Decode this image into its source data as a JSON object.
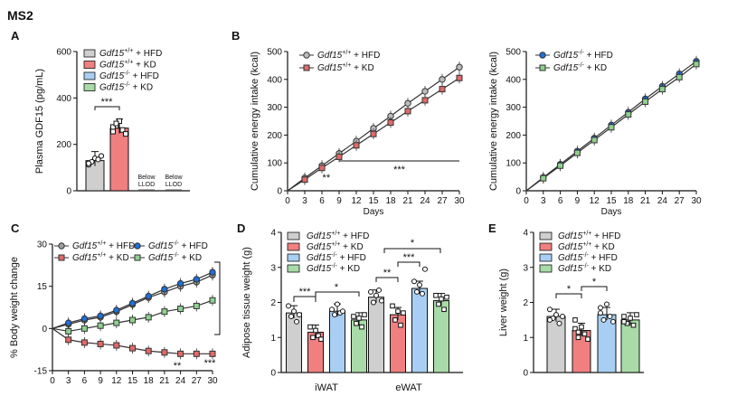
{
  "figure_label": "MS2",
  "chart_data": [
    {
      "panel": "A",
      "type": "bar",
      "ylabel": "Plasma GDF15 (pg/mL)",
      "ylim": [
        0,
        600
      ],
      "yticks": [
        "0",
        "200",
        "400",
        "600"
      ],
      "categories": [
        "Gdf15+/+ + HFD",
        "Gdf15+/+ + KD",
        "Gdf15-/- + HFD",
        "Gdf15-/- + KD"
      ],
      "values": [
        130,
        270,
        0,
        0
      ],
      "points": [
        [
          112,
          125,
          140,
          135,
          150,
          118
        ],
        [
          255,
          280,
          300,
          262,
          245,
          275,
          290
        ]
      ],
      "colors": [
        "#cfcfcf",
        "#f08080",
        "#a8cff3",
        "#a8dba8"
      ],
      "legend": [
        {
          "gene": "Gdf15",
          "sup": "+/+",
          "diet": " + HFD"
        },
        {
          "gene": "Gdf15",
          "sup": "+/+",
          "diet": " + KD"
        },
        {
          "gene": "Gdf15",
          "sup": "-/-",
          "diet": " + HFD"
        },
        {
          "gene": "Gdf15",
          "sup": "-/-",
          "diet": " + KD"
        }
      ],
      "below_llod": [
        "Below",
        "LLOD"
      ],
      "annotations": [
        "***"
      ]
    },
    {
      "panel": "B",
      "type": "line",
      "xlabel": "Days",
      "ylabel": "Cumulative energy intake (kcal)",
      "x": [
        0,
        3,
        6,
        9,
        12,
        15,
        18,
        21,
        24,
        27,
        30
      ],
      "xticks": [
        "0",
        "3",
        "6",
        "9",
        "12",
        "15",
        "18",
        "21",
        "24",
        "27",
        "30"
      ],
      "yticks": [
        "0",
        "100",
        "200",
        "300",
        "400",
        "500"
      ],
      "ylim": [
        0,
        500
      ],
      "series": [
        {
          "name": "Gdf15+/+ + HFD",
          "color": "#bdbdbd",
          "marker": "circle",
          "values": [
            0,
            46,
            90,
            134,
            178,
            224,
            268,
            314,
            357,
            400,
            444
          ]
        },
        {
          "name": "Gdf15+/+ + KD",
          "color": "#e06a6a",
          "marker": "square",
          "values": [
            0,
            40,
            82,
            122,
            163,
            204,
            245,
            286,
            325,
            365,
            405
          ]
        }
      ],
      "legend": [
        {
          "gene": "Gdf15",
          "sup": "+/+",
          "diet": " + HFD"
        },
        {
          "gene": "Gdf15",
          "sup": "+/+",
          "diet": " + KD"
        }
      ],
      "annotations": [
        "**",
        "***"
      ]
    },
    {
      "panel": "B2",
      "type": "line",
      "xlabel": "Days",
      "ylabel": "Cumulative energy intake (kcal)",
      "x": [
        0,
        3,
        6,
        9,
        12,
        15,
        18,
        21,
        24,
        27,
        30
      ],
      "xticks": [
        "0",
        "3",
        "6",
        "9",
        "12",
        "15",
        "18",
        "21",
        "24",
        "27",
        "30"
      ],
      "yticks": [
        "0",
        "100",
        "200",
        "300",
        "400",
        "500"
      ],
      "ylim": [
        0,
        500
      ],
      "series": [
        {
          "name": "Gdf15-/- + HFD",
          "color": "#1f6fd6",
          "marker": "circle",
          "values": [
            0,
            48,
            95,
            142,
            189,
            236,
            282,
            330,
            375,
            420,
            465
          ]
        },
        {
          "name": "Gdf15-/- + KD",
          "color": "#8fd08f",
          "marker": "square",
          "values": [
            0,
            45,
            90,
            136,
            182,
            228,
            274,
            320,
            365,
            408,
            455
          ]
        }
      ],
      "legend": [
        {
          "gene": "Gdf15",
          "sup": "-/-",
          "diet": " + HFD"
        },
        {
          "gene": "Gdf15",
          "sup": "-/-",
          "diet": " + KD"
        }
      ]
    },
    {
      "panel": "C",
      "type": "line",
      "ylabel": "% Body weight change",
      "x": [
        0,
        3,
        6,
        9,
        12,
        15,
        18,
        21,
        24,
        27,
        30
      ],
      "xticks": [
        "0",
        "3",
        "6",
        "9",
        "12",
        "15",
        "18",
        "21",
        "24",
        "27",
        "30"
      ],
      "yticks": [
        "-15",
        "0",
        "15",
        "30"
      ],
      "ylim": [
        -15,
        30
      ],
      "series": [
        {
          "name": "Gdf15+/+ + HFD",
          "color": "#9e9e9e",
          "marker": "circle",
          "values": [
            0,
            1.5,
            3,
            4,
            6,
            8.5,
            11,
            13,
            15,
            16.5,
            19
          ]
        },
        {
          "name": "Gdf15-/- + HFD",
          "color": "#1f6fd6",
          "marker": "circle",
          "values": [
            0,
            2,
            3.5,
            4.5,
            6.5,
            9,
            11.5,
            14,
            16,
            17.5,
            20
          ]
        },
        {
          "name": "Gdf15+/+ + KD",
          "color": "#e06a6a",
          "marker": "square",
          "values": [
            0,
            -4,
            -5,
            -5.5,
            -6,
            -7,
            -8,
            -8.5,
            -9,
            -9,
            -9
          ]
        },
        {
          "name": "Gdf15-/- + KD",
          "color": "#8fd08f",
          "marker": "square",
          "values": [
            0,
            -1,
            0,
            1,
            2,
            3,
            4,
            6,
            7,
            8,
            10
          ]
        }
      ],
      "legend": [
        {
          "gene": "Gdf15",
          "sup": "+/+",
          "diet": " + HFD"
        },
        {
          "gene": "Gdf15",
          "sup": "-/-",
          "diet": " + HFD"
        },
        {
          "gene": "Gdf15",
          "sup": "+/+",
          "diet": " + KD"
        },
        {
          "gene": "Gdf15",
          "sup": "-/-",
          "diet": " + KD"
        }
      ],
      "annotations": [
        "**",
        "***"
      ]
    },
    {
      "panel": "D",
      "type": "bar",
      "ylabel": "Adipose tissue weight (g)",
      "ylim": [
        0,
        4
      ],
      "yticks": [
        "0",
        "1",
        "2",
        "3",
        "4"
      ],
      "categories": [
        "iWAT",
        "eWAT"
      ],
      "series": [
        {
          "name": "Gdf15+/+ + HFD",
          "color": "#cfcfcf",
          "values": [
            1.7,
            2.15
          ],
          "points": [
            [
              1.9,
              1.6,
              1.75,
              1.45,
              1.65
            ],
            [
              2.3,
              2.0,
              2.2,
              2.35,
              2.05
            ]
          ]
        },
        {
          "name": "Gdf15+/+ + KD",
          "color": "#f08080",
          "values": [
            1.15,
            1.65
          ],
          "points": [
            [
              1.3,
              1.0,
              1.2,
              1.05,
              0.95
            ],
            [
              1.9,
              1.5,
              1.75,
              1.35,
              1.7
            ]
          ]
        },
        {
          "name": "Gdf15-/- + HFD",
          "color": "#a8cff3",
          "values": [
            1.75,
            2.4
          ],
          "points": [
            [
              1.8,
              1.65,
              1.95,
              1.7,
              1.75
            ],
            [
              2.6,
              2.3,
              2.5,
              2.25,
              2.95
            ]
          ]
        },
        {
          "name": "Gdf15-/- + KD",
          "color": "#a8dba8",
          "values": [
            1.5,
            2.05
          ],
          "points": [
            [
              1.6,
              1.4,
              1.55,
              1.3,
              1.65
            ],
            [
              2.2,
              1.95,
              2.1,
              1.8,
              2.15
            ]
          ]
        }
      ],
      "legend": [
        {
          "gene": "Gdf15",
          "sup": "+/+",
          "diet": " + HFD"
        },
        {
          "gene": "Gdf15",
          "sup": "+/+",
          "diet": " + KD"
        },
        {
          "gene": "Gdf15",
          "sup": "-/-",
          "diet": " + HFD"
        },
        {
          "gene": "Gdf15",
          "sup": "-/-",
          "diet": " + KD"
        }
      ],
      "annotations": [
        "***",
        "*",
        "*",
        "***",
        "**"
      ]
    },
    {
      "panel": "E",
      "type": "bar",
      "ylabel": "Liver weight (g)",
      "ylim": [
        0,
        4
      ],
      "yticks": [
        "0",
        "1",
        "2",
        "3",
        "4"
      ],
      "categories": [
        "Gdf15+/+ + HFD",
        "Gdf15+/+ + KD",
        "Gdf15-/- + HFD",
        "Gdf15-/- + KD"
      ],
      "values": [
        1.6,
        1.2,
        1.65,
        1.5
      ],
      "points": [
        [
          1.8,
          1.55,
          1.65,
          1.4,
          1.6,
          1.5
        ],
        [
          1.5,
          1.0,
          1.3,
          1.1,
          0.95,
          1.25,
          1.15
        ],
        [
          1.85,
          1.5,
          1.95,
          1.6,
          1.45,
          1.7
        ],
        [
          1.6,
          1.4,
          1.55,
          1.35,
          1.65,
          1.45
        ]
      ],
      "colors": [
        "#cfcfcf",
        "#f08080",
        "#a8cff3",
        "#a8dba8"
      ],
      "legend": [
        {
          "gene": "Gdf15",
          "sup": "+/+",
          "diet": " + HFD"
        },
        {
          "gene": "Gdf15",
          "sup": "+/+",
          "diet": " + KD"
        },
        {
          "gene": "Gdf15",
          "sup": "-/-",
          "diet": " + HFD"
        },
        {
          "gene": "Gdf15",
          "sup": "-/-",
          "diet": " + KD"
        }
      ],
      "annotations": [
        "*",
        "*"
      ]
    }
  ]
}
